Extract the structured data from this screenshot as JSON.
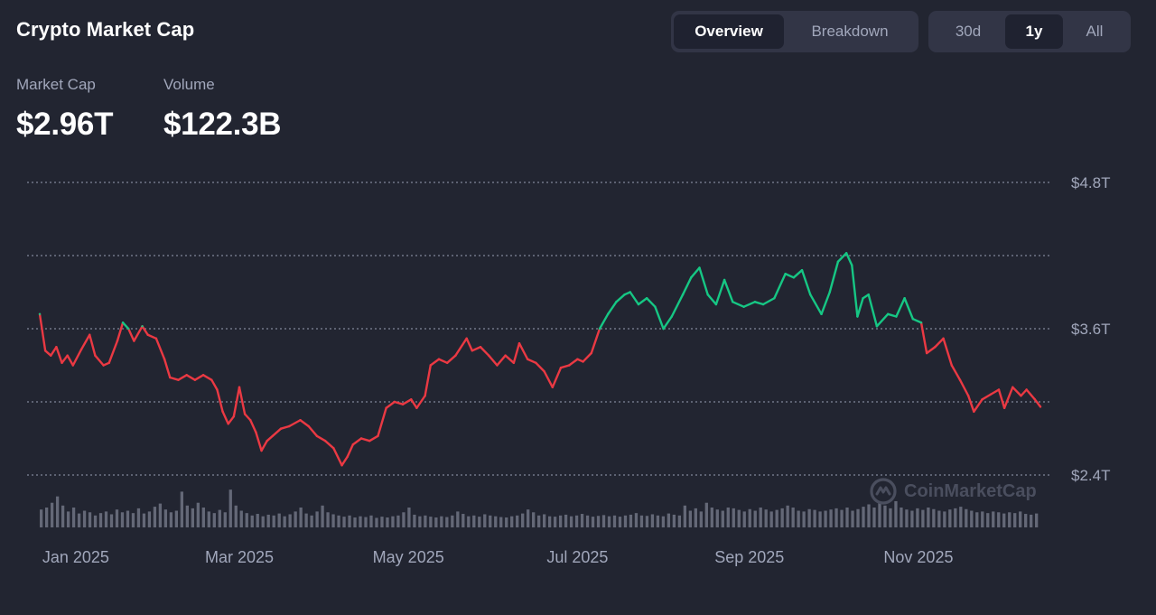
{
  "header": {
    "title": "Crypto Market Cap"
  },
  "view_tabs": [
    {
      "label": "Overview",
      "active": true
    },
    {
      "label": "Breakdown",
      "active": false
    }
  ],
  "range_tabs": [
    {
      "label": "30d",
      "active": false
    },
    {
      "label": "1y",
      "active": true
    },
    {
      "label": "All",
      "active": false
    }
  ],
  "stats": {
    "market_cap": {
      "label": "Market Cap",
      "value": "$2.96T"
    },
    "volume": {
      "label": "Volume",
      "value": "$122.3B"
    }
  },
  "watermark": {
    "text": "CoinMarketCap",
    "icon": "coinmarketcap-logo-icon"
  },
  "colors": {
    "background": "#222531",
    "up": "#16c784",
    "down": "#ea3943",
    "grid": "#a1a7bb",
    "volume_bar": "#6b7080",
    "text_muted": "#a1a7bb"
  },
  "chart_data": {
    "type": "line",
    "title": "",
    "xlabel": "",
    "ylabel": "",
    "x_ticks": [
      "Jan 2025",
      "Mar 2025",
      "May 2025",
      "Jul 2025",
      "Sep 2025",
      "Nov 2025"
    ],
    "y_ticks": [
      "$2.4T",
      "$3.0T",
      "$3.6T",
      "$4.2T",
      "$4.8T"
    ],
    "y_tick_labels_shown": [
      "$2.4T",
      "$3.6T",
      "$4.8T"
    ],
    "ylim": [
      2.4,
      4.8
    ],
    "xlim": [
      "2024-12-19",
      "2025-12-15"
    ],
    "baseline": 3.6,
    "series": [
      {
        "name": "",
        "points": [
          [
            "2024-12-19",
            3.72
          ],
          [
            "2024-12-21",
            3.42
          ],
          [
            "2024-12-23",
            3.38
          ],
          [
            "2024-12-25",
            3.45
          ],
          [
            "2024-12-27",
            3.32
          ],
          [
            "2024-12-29",
            3.38
          ],
          [
            "2024-12-31",
            3.3
          ],
          [
            "2025-01-03",
            3.43
          ],
          [
            "2025-01-06",
            3.55
          ],
          [
            "2025-01-08",
            3.38
          ],
          [
            "2025-01-11",
            3.3
          ],
          [
            "2025-01-13",
            3.32
          ],
          [
            "2025-01-16",
            3.5
          ],
          [
            "2025-01-18",
            3.65
          ],
          [
            "2025-01-20",
            3.6
          ],
          [
            "2025-01-22",
            3.5
          ],
          [
            "2025-01-25",
            3.62
          ],
          [
            "2025-01-27",
            3.55
          ],
          [
            "2025-01-30",
            3.52
          ],
          [
            "2025-02-02",
            3.35
          ],
          [
            "2025-02-04",
            3.2
          ],
          [
            "2025-02-07",
            3.18
          ],
          [
            "2025-02-10",
            3.22
          ],
          [
            "2025-02-13",
            3.18
          ],
          [
            "2025-02-16",
            3.22
          ],
          [
            "2025-02-19",
            3.18
          ],
          [
            "2025-02-21",
            3.1
          ],
          [
            "2025-02-23",
            2.92
          ],
          [
            "2025-02-25",
            2.82
          ],
          [
            "2025-02-27",
            2.88
          ],
          [
            "2025-03-01",
            3.12
          ],
          [
            "2025-03-03",
            2.9
          ],
          [
            "2025-03-05",
            2.85
          ],
          [
            "2025-03-07",
            2.75
          ],
          [
            "2025-03-09",
            2.6
          ],
          [
            "2025-03-11",
            2.68
          ],
          [
            "2025-03-13",
            2.72
          ],
          [
            "2025-03-16",
            2.78
          ],
          [
            "2025-03-19",
            2.8
          ],
          [
            "2025-03-23",
            2.85
          ],
          [
            "2025-03-26",
            2.8
          ],
          [
            "2025-03-29",
            2.72
          ],
          [
            "2025-04-01",
            2.68
          ],
          [
            "2025-04-04",
            2.62
          ],
          [
            "2025-04-07",
            2.48
          ],
          [
            "2025-04-09",
            2.55
          ],
          [
            "2025-04-11",
            2.65
          ],
          [
            "2025-04-14",
            2.7
          ],
          [
            "2025-04-17",
            2.68
          ],
          [
            "2025-04-20",
            2.72
          ],
          [
            "2025-04-23",
            2.95
          ],
          [
            "2025-04-26",
            3.0
          ],
          [
            "2025-04-29",
            2.98
          ],
          [
            "2025-05-02",
            3.02
          ],
          [
            "2025-05-04",
            2.95
          ],
          [
            "2025-05-07",
            3.05
          ],
          [
            "2025-05-09",
            3.3
          ],
          [
            "2025-05-12",
            3.35
          ],
          [
            "2025-05-15",
            3.32
          ],
          [
            "2025-05-18",
            3.38
          ],
          [
            "2025-05-22",
            3.52
          ],
          [
            "2025-05-24",
            3.42
          ],
          [
            "2025-05-27",
            3.45
          ],
          [
            "2025-05-30",
            3.38
          ],
          [
            "2025-06-02",
            3.3
          ],
          [
            "2025-06-05",
            3.38
          ],
          [
            "2025-06-08",
            3.32
          ],
          [
            "2025-06-10",
            3.48
          ],
          [
            "2025-06-13",
            3.35
          ],
          [
            "2025-06-16",
            3.32
          ],
          [
            "2025-06-19",
            3.25
          ],
          [
            "2025-06-22",
            3.12
          ],
          [
            "2025-06-25",
            3.28
          ],
          [
            "2025-06-28",
            3.3
          ],
          [
            "2025-07-01",
            3.35
          ],
          [
            "2025-07-03",
            3.33
          ],
          [
            "2025-07-06",
            3.4
          ],
          [
            "2025-07-09",
            3.6
          ],
          [
            "2025-07-12",
            3.72
          ],
          [
            "2025-07-15",
            3.82
          ],
          [
            "2025-07-18",
            3.88
          ],
          [
            "2025-07-20",
            3.9
          ],
          [
            "2025-07-23",
            3.8
          ],
          [
            "2025-07-26",
            3.85
          ],
          [
            "2025-07-29",
            3.78
          ],
          [
            "2025-08-01",
            3.6
          ],
          [
            "2025-08-04",
            3.7
          ],
          [
            "2025-08-08",
            3.88
          ],
          [
            "2025-08-11",
            4.02
          ],
          [
            "2025-08-14",
            4.1
          ],
          [
            "2025-08-17",
            3.88
          ],
          [
            "2025-08-20",
            3.8
          ],
          [
            "2025-08-23",
            4.0
          ],
          [
            "2025-08-26",
            3.82
          ],
          [
            "2025-08-30",
            3.78
          ],
          [
            "2025-09-03",
            3.82
          ],
          [
            "2025-09-06",
            3.8
          ],
          [
            "2025-09-10",
            3.85
          ],
          [
            "2025-09-14",
            4.05
          ],
          [
            "2025-09-17",
            4.02
          ],
          [
            "2025-09-20",
            4.08
          ],
          [
            "2025-09-23",
            3.88
          ],
          [
            "2025-09-27",
            3.72
          ],
          [
            "2025-09-30",
            3.9
          ],
          [
            "2025-10-03",
            4.15
          ],
          [
            "2025-10-06",
            4.22
          ],
          [
            "2025-10-08",
            4.12
          ],
          [
            "2025-10-10",
            3.7
          ],
          [
            "2025-10-12",
            3.85
          ],
          [
            "2025-10-14",
            3.88
          ],
          [
            "2025-10-17",
            3.62
          ],
          [
            "2025-10-21",
            3.72
          ],
          [
            "2025-10-24",
            3.7
          ],
          [
            "2025-10-27",
            3.85
          ],
          [
            "2025-10-30",
            3.68
          ],
          [
            "2025-11-02",
            3.65
          ],
          [
            "2025-11-04",
            3.4
          ],
          [
            "2025-11-07",
            3.45
          ],
          [
            "2025-11-10",
            3.52
          ],
          [
            "2025-11-13",
            3.3
          ],
          [
            "2025-11-16",
            3.18
          ],
          [
            "2025-11-19",
            3.05
          ],
          [
            "2025-11-21",
            2.92
          ],
          [
            "2025-11-24",
            3.02
          ],
          [
            "2025-11-27",
            3.06
          ],
          [
            "2025-11-30",
            3.1
          ],
          [
            "2025-12-02",
            2.95
          ],
          [
            "2025-12-05",
            3.12
          ],
          [
            "2025-12-08",
            3.05
          ],
          [
            "2025-12-10",
            3.1
          ],
          [
            "2025-12-13",
            3.02
          ],
          [
            "2025-12-15",
            2.96
          ]
        ]
      }
    ],
    "volume": {
      "description_from_image": "",
      "relative_values": [
        0.45,
        0.5,
        0.62,
        0.78,
        0.55,
        0.4,
        0.5,
        0.35,
        0.42,
        0.38,
        0.3,
        0.36,
        0.4,
        0.33,
        0.45,
        0.38,
        0.42,
        0.36,
        0.48,
        0.35,
        0.4,
        0.52,
        0.6,
        0.45,
        0.38,
        0.42,
        0.9,
        0.55,
        0.48,
        0.62,
        0.5,
        0.4,
        0.36,
        0.44,
        0.38,
        0.95,
        0.55,
        0.42,
        0.36,
        0.3,
        0.34,
        0.28,
        0.32,
        0.3,
        0.35,
        0.28,
        0.33,
        0.4,
        0.5,
        0.35,
        0.3,
        0.4,
        0.55,
        0.38,
        0.33,
        0.3,
        0.27,
        0.3,
        0.25,
        0.28,
        0.26,
        0.3,
        0.24,
        0.27,
        0.25,
        0.28,
        0.3,
        0.38,
        0.5,
        0.32,
        0.28,
        0.3,
        0.27,
        0.25,
        0.28,
        0.26,
        0.3,
        0.4,
        0.34,
        0.28,
        0.3,
        0.27,
        0.33,
        0.3,
        0.28,
        0.26,
        0.25,
        0.28,
        0.3,
        0.35,
        0.45,
        0.38,
        0.3,
        0.33,
        0.28,
        0.27,
        0.3,
        0.32,
        0.28,
        0.3,
        0.34,
        0.3,
        0.27,
        0.29,
        0.31,
        0.28,
        0.3,
        0.27,
        0.3,
        0.32,
        0.36,
        0.3,
        0.29,
        0.33,
        0.3,
        0.28,
        0.35,
        0.32,
        0.3,
        0.55,
        0.42,
        0.48,
        0.4,
        0.62,
        0.5,
        0.45,
        0.42,
        0.5,
        0.48,
        0.44,
        0.4,
        0.46,
        0.42,
        0.5,
        0.45,
        0.4,
        0.44,
        0.48,
        0.55,
        0.5,
        0.42,
        0.4,
        0.46,
        0.44,
        0.4,
        0.42,
        0.45,
        0.48,
        0.44,
        0.5,
        0.42,
        0.46,
        0.52,
        0.58,
        0.5,
        0.62,
        0.55,
        0.48,
        0.66,
        0.5,
        0.45,
        0.42,
        0.48,
        0.44,
        0.5,
        0.46,
        0.42,
        0.4,
        0.45,
        0.48,
        0.52,
        0.46,
        0.42,
        0.38,
        0.4,
        0.36,
        0.4,
        0.38,
        0.35,
        0.38,
        0.36,
        0.4,
        0.34,
        0.32,
        0.35
      ]
    }
  }
}
